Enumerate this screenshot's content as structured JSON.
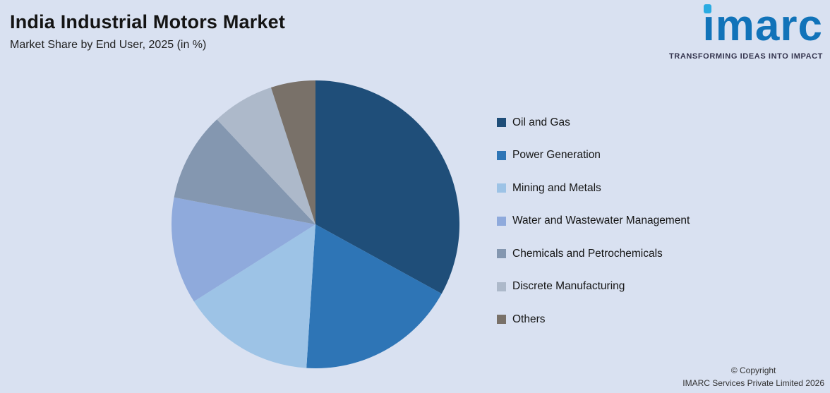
{
  "header": {
    "title": "India Industrial Motors Market",
    "subtitle": "Market Share by End User, 2025 (in %)"
  },
  "logo": {
    "text": "imarc",
    "tagline": "TRANSFORMING IDEAS INTO IMPACT",
    "brand_color": "#1173b9",
    "dot_color": "#2aabe2"
  },
  "footer": {
    "copyright_line1": "© Copyright",
    "copyright_line2": "IMARC Services Private Limited 2026"
  },
  "chart_data": {
    "type": "pie",
    "title": "India Industrial Motors Market",
    "subtitle": "Market Share by End User, 2025 (in %)",
    "categories": [
      "Oil and Gas",
      "Power Generation",
      "Mining and Metals",
      "Water and Wastewater Management",
      "Chemicals and Petrochemicals",
      "Discrete Manufacturing",
      "Others"
    ],
    "values": [
      33,
      18,
      15,
      12,
      10,
      7,
      5
    ],
    "colors": [
      "#1f4e79",
      "#2e75b6",
      "#9dc3e6",
      "#8faadc",
      "#8497b0",
      "#adb9ca",
      "#797169"
    ],
    "legend_position": "right",
    "start_angle_deg": 0,
    "direction": "clockwise",
    "background_color": "#d9e1f1"
  }
}
